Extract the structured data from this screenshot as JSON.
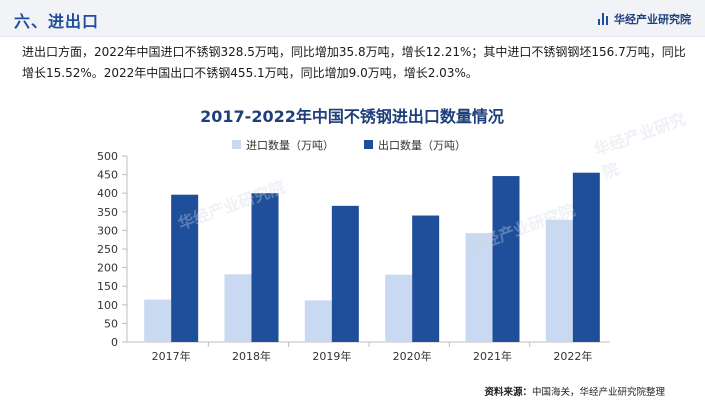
{
  "header": {
    "section_title": "六、进出口",
    "brand": "华经产业研究院"
  },
  "paragraph": "进出口方面，2022年中国进口不锈钢328.5万吨，同比增加35.8万吨，增长12.21%；其中进口不锈钢钢坯156.7万吨，同比增长15.52%。2022年中国出口不锈钢455.1万吨，同比增加9.0万吨，增长2.03%。",
  "source": {
    "label": "资料来源：",
    "text": "中国海关，华经产业研究院整理"
  },
  "watermark": "华经产业研究院",
  "colors": {
    "import": "#c9d9f1",
    "export": "#1f4e9b",
    "title": "#1f3f7a",
    "axis": "#bfbfbf"
  },
  "chart_data": {
    "type": "bar",
    "title": "2017-2022年中国不锈钢进出口数量情况",
    "categories": [
      "2017年",
      "2018年",
      "2019年",
      "2020年",
      "2021年",
      "2022年"
    ],
    "series": [
      {
        "name": "进口数量（万吨）",
        "values": [
          114,
          182,
          112,
          181,
          292.7,
          328.5
        ]
      },
      {
        "name": "出口数量（万吨）",
        "values": [
          396,
          400,
          366,
          340,
          446.1,
          455.1
        ]
      }
    ],
    "ylim": [
      0,
      500
    ],
    "yticks": [
      0,
      50,
      100,
      150,
      200,
      250,
      300,
      350,
      400,
      450,
      500
    ],
    "legend": "top-center",
    "grid": false
  }
}
